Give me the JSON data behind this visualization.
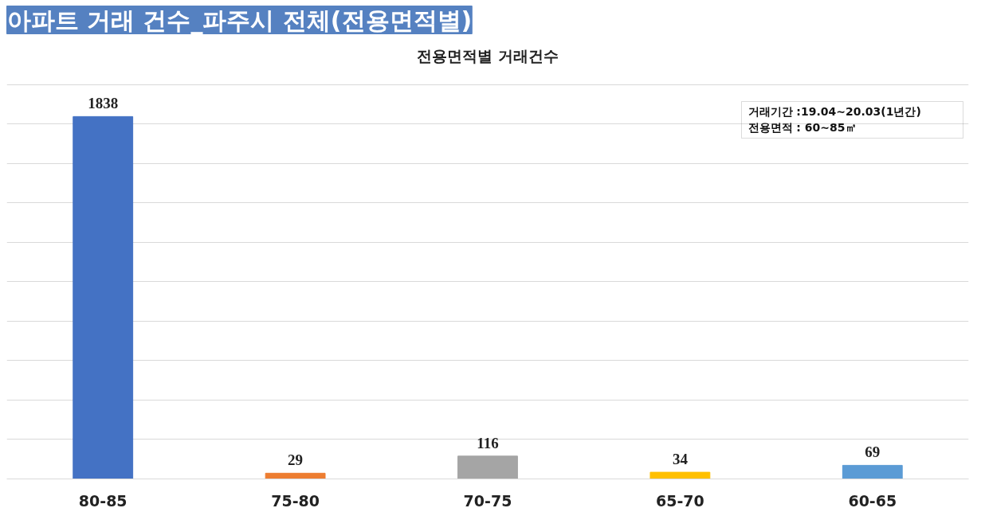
{
  "chart_data": {
    "type": "bar",
    "title": "아파트 거래 건수_파주시 전체(전용면적별)",
    "subtitle": "전용면적별 거래건수",
    "categories": [
      "80-85",
      "75-80",
      "70-75",
      "65-70",
      "60-65"
    ],
    "values": [
      1838,
      29,
      116,
      34,
      69
    ],
    "colors": [
      "#4472c4",
      "#ed7d31",
      "#a5a5a5",
      "#ffc000",
      "#5b9bd5"
    ],
    "tick_labels": "x",
    "grid": "y",
    "data_labels": true,
    "legend": false,
    "annotations": [
      "거래기간 :19.04~20.03(1년간)",
      "전용면적 : 60~85㎡"
    ]
  }
}
